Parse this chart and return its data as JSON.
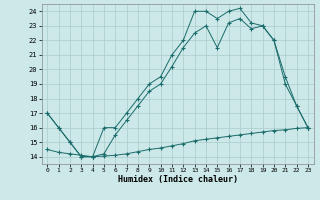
{
  "xlabel": "Humidex (Indice chaleur)",
  "background_color": "#cce8e8",
  "line_color": "#1a6b6b",
  "grid_color": "#aacccc",
  "xlim": [
    -0.5,
    23.5
  ],
  "ylim": [
    13.5,
    24.5
  ],
  "xticks": [
    0,
    1,
    2,
    3,
    4,
    5,
    6,
    7,
    8,
    9,
    10,
    11,
    12,
    13,
    14,
    15,
    16,
    17,
    18,
    19,
    20,
    21,
    22,
    23
  ],
  "yticks": [
    14,
    15,
    16,
    17,
    18,
    19,
    20,
    21,
    22,
    23,
    24
  ],
  "line1_x": [
    0,
    1,
    2,
    3,
    4,
    5,
    6,
    7,
    8,
    9,
    10,
    11,
    12,
    13,
    14,
    15,
    16,
    17,
    18,
    19,
    20,
    21,
    22,
    23
  ],
  "line1_y": [
    17,
    16,
    15,
    14,
    14,
    16,
    16,
    17,
    18,
    19,
    19.5,
    21,
    22,
    24,
    24,
    23.5,
    24,
    24.2,
    23.2,
    23,
    22,
    19.5,
    17.5,
    16
  ],
  "line2_x": [
    0,
    1,
    2,
    3,
    4,
    5,
    6,
    7,
    8,
    9,
    10,
    11,
    12,
    13,
    14,
    15,
    16,
    17,
    18,
    19,
    20,
    21,
    22,
    23
  ],
  "line2_y": [
    17,
    16,
    15,
    14,
    14,
    14.2,
    15.5,
    16.5,
    17.5,
    18.5,
    19,
    20.2,
    21.5,
    22.5,
    23,
    21.5,
    23.2,
    23.5,
    22.8,
    23,
    22,
    19,
    17.5,
    16
  ],
  "line3_x": [
    0,
    1,
    2,
    3,
    4,
    5,
    6,
    7,
    8,
    9,
    10,
    11,
    12,
    13,
    14,
    15,
    16,
    17,
    18,
    19,
    20,
    21,
    22,
    23
  ],
  "line3_y": [
    14.5,
    14.3,
    14.2,
    14.1,
    14.0,
    14.05,
    14.1,
    14.2,
    14.35,
    14.5,
    14.6,
    14.75,
    14.9,
    15.1,
    15.2,
    15.3,
    15.4,
    15.5,
    15.6,
    15.7,
    15.8,
    15.85,
    15.95,
    16.0
  ]
}
